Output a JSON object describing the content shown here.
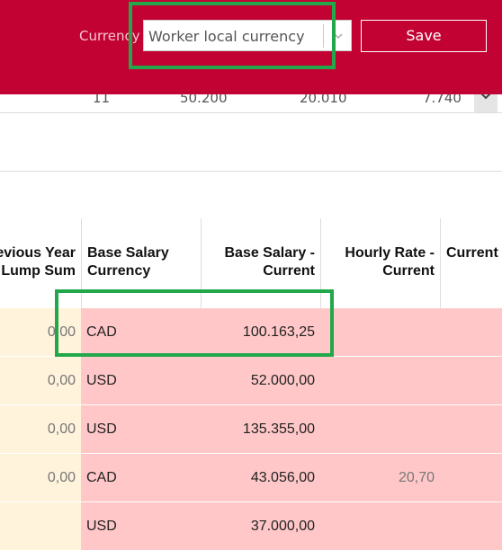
{
  "toolbar": {
    "currency_label": "Currency",
    "currency_value": "Worker local currency",
    "save": "Save"
  },
  "partial_row": [
    "11",
    "50.200",
    "20.010",
    "7.740"
  ],
  "table": {
    "headers": [
      "Previous Year Lump Sum",
      "Base Salary Currency",
      "Base Salary - Current",
      "Hourly Rate - Current",
      "Current"
    ],
    "rows": [
      [
        "0,00",
        "CAD",
        "100.163,25",
        ""
      ],
      [
        "0,00",
        "USD",
        "52.000,00",
        ""
      ],
      [
        "0,00",
        "USD",
        "135.355,00",
        ""
      ],
      [
        "0,00",
        "CAD",
        "43.056,00",
        "20,70"
      ],
      [
        "",
        "USD",
        "37.000,00",
        ""
      ]
    ]
  }
}
